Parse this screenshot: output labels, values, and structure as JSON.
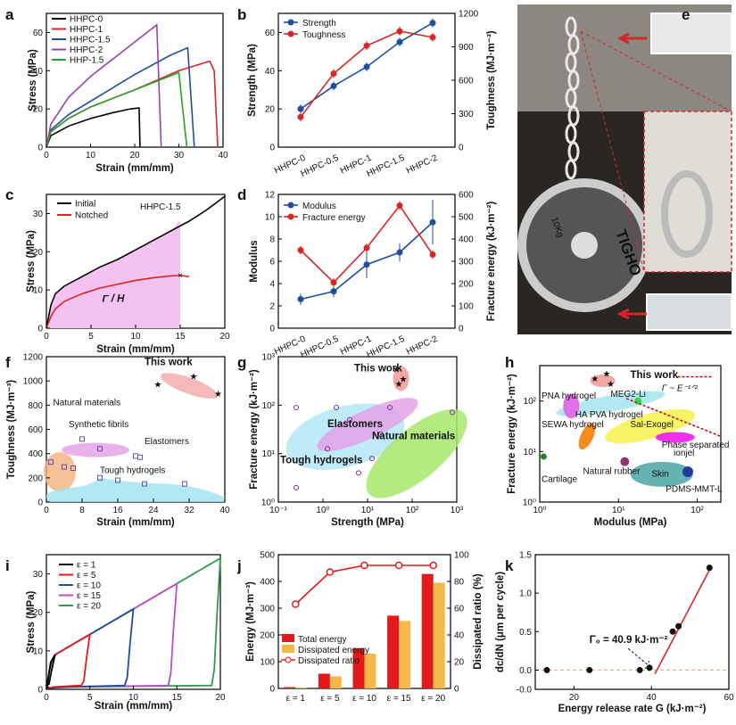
{
  "panels": [
    "a",
    "b",
    "c",
    "d",
    "e",
    "f",
    "g",
    "h",
    "i",
    "j",
    "k"
  ],
  "chart_data": [
    {
      "panel": "a",
      "type": "line",
      "xlabel": "Strain (mm/mm)",
      "ylabel": "Stress (MPa)",
      "xlim": [
        0,
        40
      ],
      "ylim": [
        0,
        70
      ],
      "xticks": [
        "0",
        "10",
        "20",
        "30",
        "40"
      ],
      "yticks": [
        "0",
        "20",
        "40",
        "60"
      ],
      "legend": "top-left",
      "series": [
        {
          "name": "HHPC-0",
          "color": "#000000",
          "points": [
            [
              0,
              0
            ],
            [
              1,
              6
            ],
            [
              5,
              11
            ],
            [
              10,
              15
            ],
            [
              15,
              18
            ],
            [
              19,
              20
            ],
            [
              21,
              20.5
            ],
            [
              21.2,
              0
            ]
          ]
        },
        {
          "name": "HHPC-1",
          "color": "#d62728",
          "points": [
            [
              0,
              0
            ],
            [
              1,
              8
            ],
            [
              5,
              15
            ],
            [
              10,
              21
            ],
            [
              20,
              30
            ],
            [
              30,
              40
            ],
            [
              37,
              45
            ],
            [
              38,
              40
            ],
            [
              38.8,
              0
            ]
          ]
        },
        {
          "name": "HHPC-1.5",
          "color": "#1f4e9c",
          "points": [
            [
              0,
              0
            ],
            [
              1,
              9
            ],
            [
              5,
              17
            ],
            [
              10,
              24
            ],
            [
              20,
              38
            ],
            [
              28,
              48
            ],
            [
              32,
              52
            ],
            [
              33.5,
              0
            ]
          ]
        },
        {
          "name": "HHPC-2",
          "color": "#9b3fb0",
          "points": [
            [
              0,
              0
            ],
            [
              1,
              12
            ],
            [
              5,
              26
            ],
            [
              10,
              37
            ],
            [
              15,
              46
            ],
            [
              20,
              55
            ],
            [
              25,
              64
            ],
            [
              26,
              0
            ]
          ]
        },
        {
          "name": "HHP-1.5",
          "color": "#2ca02c",
          "points": [
            [
              0,
              0
            ],
            [
              1,
              8
            ],
            [
              5,
              15
            ],
            [
              10,
              21
            ],
            [
              20,
              30
            ],
            [
              30,
              39
            ],
            [
              31.8,
              0
            ]
          ]
        }
      ]
    },
    {
      "panel": "b",
      "type": "line",
      "categories": [
        "HHPC-0",
        "HHPC-0.5",
        "HHPC-1",
        "HHPC-1.5",
        "HHPC-2"
      ],
      "ylabel": "Strength (MPa)",
      "y2label": "Toughness (MJ·m⁻³)",
      "ylim": [
        0,
        70
      ],
      "y2lim": [
        0,
        1200
      ],
      "yticks": [
        "0",
        "20",
        "40",
        "60"
      ],
      "y2ticks": [
        "0",
        "300",
        "600",
        "900",
        "1200"
      ],
      "legend": "top-left",
      "series": [
        {
          "name": "Strength",
          "axis": "left",
          "color": "#1f4e9c",
          "values": [
            20,
            32,
            42,
            55,
            65
          ]
        },
        {
          "name": "Toughness",
          "axis": "right",
          "color": "#d62728",
          "values": [
            270,
            660,
            910,
            1040,
            985
          ]
        }
      ]
    },
    {
      "panel": "c",
      "type": "area",
      "xlabel": "Strain (mm/mm)",
      "ylabel": "Stress (MPa)",
      "xlim": [
        0,
        20
      ],
      "ylim": [
        0,
        35
      ],
      "xticks": [
        "0",
        "5",
        "10",
        "15",
        "20"
      ],
      "yticks": [
        "0",
        "10",
        "20",
        "30"
      ],
      "annotation": "HHPC-1.5",
      "area_label": "Γ / H",
      "fill": "#f3c2f0",
      "series": [
        {
          "name": "Initial",
          "color": "#000000",
          "points": [
            [
              0,
              0
            ],
            [
              0.5,
              6
            ],
            [
              1,
              9
            ],
            [
              2,
              11
            ],
            [
              4,
              13.5
            ],
            [
              6,
              16
            ],
            [
              8,
              18
            ],
            [
              10,
              20.5
            ],
            [
              12,
              23
            ],
            [
              14,
              25.5
            ],
            [
              16,
              28
            ],
            [
              18,
              31
            ],
            [
              20,
              34.5
            ]
          ]
        },
        {
          "name": "Notched",
          "color": "#d62728",
          "points": [
            [
              0,
              0
            ],
            [
              0.5,
              3
            ],
            [
              1,
              5
            ],
            [
              2,
              7
            ],
            [
              4,
              9
            ],
            [
              6,
              10.5
            ],
            [
              8,
              11.5
            ],
            [
              10,
              12.5
            ],
            [
              12,
              13.2
            ],
            [
              14,
              13.7
            ],
            [
              15,
              13.8
            ],
            [
              16,
              13.5
            ]
          ]
        }
      ]
    },
    {
      "panel": "d",
      "type": "line",
      "categories": [
        "HHPC-0",
        "HHPC-0.5",
        "HHPC-1",
        "HHPC-1.5",
        "HHPC-2"
      ],
      "ylabel": "Modulus",
      "y2label": "Fracture energy (kJ·m⁻²)",
      "ylim": [
        0,
        12
      ],
      "y2lim": [
        0,
        600
      ],
      "yticks": [
        "0",
        "2",
        "4",
        "6",
        "8",
        "10",
        "12"
      ],
      "y2ticks": [
        "0",
        "100",
        "200",
        "300",
        "400",
        "500",
        "600"
      ],
      "legend": "top-left",
      "series": [
        {
          "name": "Modulus",
          "axis": "left",
          "color": "#1f4e9c",
          "values": [
            2.6,
            3.3,
            5.7,
            6.8,
            9.5
          ]
        },
        {
          "name": "Fracture energy",
          "axis": "right",
          "color": "#d62728",
          "values": [
            350,
            205,
            360,
            550,
            330
          ]
        }
      ]
    },
    {
      "panel": "f",
      "type": "scatter",
      "xlabel": "Strain (mm/mm)",
      "ylabel": "Toughness (MJ·m⁻³)",
      "xlim": [
        0,
        40
      ],
      "ylim": [
        0,
        1200
      ],
      "xticks": [
        "0",
        "8",
        "16",
        "24",
        "32",
        "40"
      ],
      "yticks": [
        "0",
        "200",
        "400",
        "600",
        "800",
        "1000",
        "1200"
      ],
      "labels": [
        "This work",
        "Natural materials",
        "Synthetic fibrils",
        "Elastomers",
        "Tough hydrogels"
      ],
      "this_work": [
        [
          25,
          975
        ],
        [
          33,
          1040
        ],
        [
          38.5,
          900
        ]
      ]
    },
    {
      "panel": "g",
      "type": "scatter",
      "xlabel": "Strength (MPa)",
      "ylabel": "Fracture energy (kJ·m⁻²)",
      "log": true,
      "xticks": [
        "10⁻¹",
        "10⁰",
        "10¹",
        "10²",
        "10³"
      ],
      "yticks": [
        "10⁰",
        "10¹",
        "10²",
        "10³"
      ],
      "labels": [
        "This work",
        "Elastomers",
        "Natural materials",
        "Tough hydrogels"
      ]
    },
    {
      "panel": "h",
      "type": "scatter",
      "xlabel": "Modulus (MPa)",
      "ylabel": "Fracture energy (kJ·m⁻²)",
      "log": true,
      "xticks": [
        "10⁰",
        "10¹",
        "10²"
      ],
      "yticks": [
        "10⁰",
        "10¹",
        "10²"
      ],
      "labels": [
        "This work",
        "Γ ~ E⁻¹ᐟ²",
        "PNA hydrogel",
        "MEG2-Li",
        "HA PVA hydrogel",
        "SEWA hydrogel",
        "Sal-Exogel",
        "Phase separated",
        "ionjel",
        "Natural rubber",
        "Cartilage",
        "Skin",
        "PDMS-MMT-L"
      ]
    },
    {
      "panel": "i",
      "type": "line",
      "xlabel": "Strain (mm/mm)",
      "ylabel": "Stress (MPa)",
      "xlim": [
        0,
        20
      ],
      "ylim": [
        0,
        35
      ],
      "xticks": [
        "0",
        "5",
        "10",
        "15",
        "20"
      ],
      "yticks": [
        "0",
        "10",
        "20",
        "30"
      ],
      "legend": "top-left",
      "series": [
        {
          "name": "ε = 1",
          "color": "#000000",
          "max": 1
        },
        {
          "name": "ε = 5",
          "color": "#e31a1c",
          "max": 5
        },
        {
          "name": "ε = 10",
          "color": "#1f4e9c",
          "max": 10
        },
        {
          "name": "ε = 15",
          "color": "#b94fc8",
          "max": 15
        },
        {
          "name": "ε = 20",
          "color": "#2e9c4a",
          "max": 20
        }
      ]
    },
    {
      "panel": "j",
      "type": "bar",
      "categories": [
        "ε = 1",
        "ε = 5",
        "ε = 10",
        "ε = 15",
        "ε = 20"
      ],
      "ylabel": "Energy (MJ·m⁻³)",
      "y2label": "Dissipated ratio (%)",
      "ylim": [
        0,
        500
      ],
      "y2lim": [
        0,
        100
      ],
      "yticks": [
        "0",
        "100",
        "200",
        "300",
        "400",
        "500"
      ],
      "y2ticks": [
        "0",
        "20",
        "40",
        "60",
        "80",
        "100"
      ],
      "legend": "left",
      "series": [
        {
          "name": "Total energy",
          "color": "#e31a1c",
          "values": [
            5,
            55,
            150,
            272,
            428
          ]
        },
        {
          "name": "Dissipated energy",
          "color": "#f7b84a",
          "values": [
            3,
            45,
            130,
            252,
            395
          ]
        },
        {
          "name": "Dissipated ratio",
          "axis": "right",
          "color": "#e31a1c",
          "values": [
            63,
            87,
            92,
            92,
            92
          ]
        }
      ]
    },
    {
      "panel": "k",
      "type": "scatter",
      "xlabel": "Energy release rate G (kJ·m⁻²)",
      "ylabel": "dc/dN (μm per cycle)",
      "xlim": [
        10,
        60
      ],
      "ylim": [
        -0.25,
        1.5
      ],
      "xticks": [
        "20",
        "40",
        "60"
      ],
      "yticks": [
        "-0.0",
        "0.0",
        "0.5",
        "1.0",
        "1.5"
      ],
      "annotation": "Γ₀ = 40.9 kJ·m⁻²",
      "points": [
        [
          13,
          0
        ],
        [
          24,
          0
        ],
        [
          37,
          0
        ],
        [
          39.5,
          0.03
        ],
        [
          45.5,
          0.5
        ],
        [
          47,
          0.57
        ],
        [
          55,
          1.33
        ]
      ],
      "fit": [
        [
          40.9,
          -0.05
        ],
        [
          55.5,
          1.35
        ]
      ]
    }
  ],
  "photo": {
    "label": "e",
    "weight_text": "10Kg",
    "brand_text": "TIGHO"
  }
}
